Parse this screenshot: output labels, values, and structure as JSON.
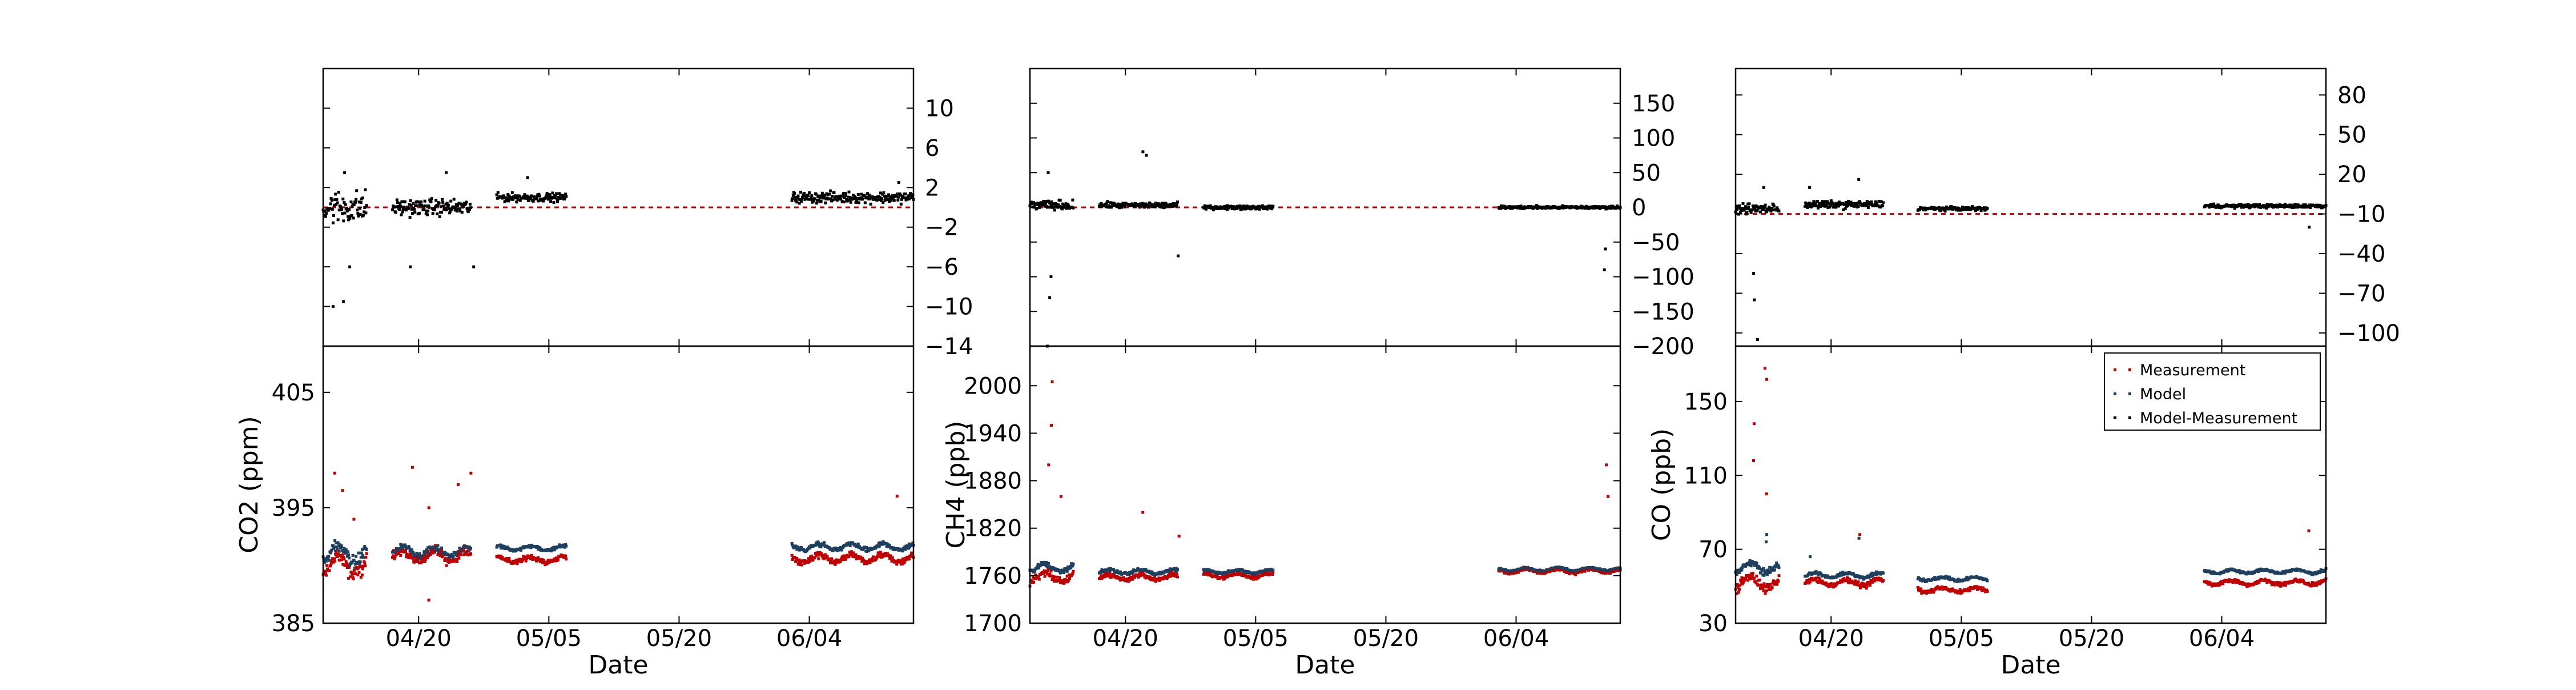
{
  "colors": {
    "measurement": "#c00000",
    "model": "#1f3f5f",
    "difference": "#000000",
    "zero_line": "#c00000"
  },
  "legend": {
    "placement": "top-right",
    "entries": [
      "Measurement",
      "Model",
      "Model-Measurement"
    ]
  },
  "chart_data": [
    {
      "type": "scatter",
      "panel": "CO2",
      "xlabel": "Date",
      "x_range": [
        "04-09",
        "06-16"
      ],
      "x_ticks": [
        "04/20",
        "05/05",
        "05/20",
        "06/04"
      ],
      "bottom": {
        "ylabel": "CO2 (ppm)",
        "ylim": [
          385,
          409
        ],
        "yticks": [
          385,
          395,
          405
        ],
        "segments": [
          {
            "x": [
              "04-09",
              "04-14"
            ],
            "model": 391,
            "measurement": 390,
            "spread": 2.2
          },
          {
            "x": [
              "04-17",
              "04-26"
            ],
            "model": 391.2,
            "measurement": 390.8,
            "spread": 1.2
          },
          {
            "x": [
              "04-29",
              "05-07"
            ],
            "model": 391.5,
            "measurement": 390.5,
            "spread": 0.6
          },
          {
            "x": [
              "06-02",
              "06-16"
            ],
            "model": 391.6,
            "measurement": 390.6,
            "spread": 0.8
          }
        ],
        "measurement_spikes": [
          {
            "x": "04-10",
            "y": 398
          },
          {
            "x": "04-11",
            "y": 396.5
          },
          {
            "x": "04-12",
            "y": 394
          },
          {
            "x": "04-19",
            "y": 398.5
          },
          {
            "x": "04-21",
            "y": 395
          },
          {
            "x": "04-24",
            "y": 397
          },
          {
            "x": "04-26",
            "y": 398
          },
          {
            "x": "04-21",
            "y": 387
          },
          {
            "x": "06-14",
            "y": 396
          }
        ]
      },
      "top": {
        "ylim": [
          -14,
          14
        ],
        "yticks": [
          10,
          6,
          2,
          -2,
          -6,
          -10,
          -14
        ],
        "zero_line": 0,
        "segments": [
          {
            "x": [
              "04-09",
              "04-14"
            ],
            "level": 0,
            "spread": 2.5
          },
          {
            "x": [
              "04-17",
              "04-26"
            ],
            "level": 0,
            "spread": 1.2
          },
          {
            "x": [
              "04-29",
              "05-07"
            ],
            "level": 1,
            "spread": 0.6
          },
          {
            "x": [
              "06-02",
              "06-16"
            ],
            "level": 1,
            "spread": 0.8
          }
        ],
        "spikes": [
          {
            "x": "04-10",
            "y": -10
          },
          {
            "x": "04-11",
            "y": -9.5
          },
          {
            "x": "04-12",
            "y": -6
          },
          {
            "x": "04-11",
            "y": 3.5
          },
          {
            "x": "04-19",
            "y": -6
          },
          {
            "x": "04-23",
            "y": 3.5
          },
          {
            "x": "04-26",
            "y": -6
          },
          {
            "x": "05-02",
            "y": 3
          },
          {
            "x": "06-14",
            "y": 2.5
          }
        ]
      }
    },
    {
      "type": "scatter",
      "panel": "CH4",
      "xlabel": "Date",
      "x_range": [
        "04-09",
        "06-16"
      ],
      "x_ticks": [
        "04/20",
        "05/05",
        "05/20",
        "06/04"
      ],
      "bottom": {
        "ylabel": "CH4 (ppb)",
        "ylim": [
          1700,
          2050
        ],
        "yticks": [
          1700,
          1760,
          1820,
          1880,
          1940,
          2000
        ],
        "segments": [
          {
            "x": [
              "04-09",
              "04-14"
            ],
            "model": 1770,
            "measurement": 1758,
            "spread": 15
          },
          {
            "x": [
              "04-17",
              "04-26"
            ],
            "model": 1765,
            "measurement": 1758,
            "spread": 8
          },
          {
            "x": [
              "04-29",
              "05-07"
            ],
            "model": 1765,
            "measurement": 1760,
            "spread": 6
          },
          {
            "x": [
              "06-02",
              "06-16"
            ],
            "model": 1768,
            "measurement": 1766,
            "spread": 6
          }
        ],
        "measurement_spikes": [
          {
            "x": "04-11",
            "y": 2005
          },
          {
            "x": "04-11",
            "y": 1950
          },
          {
            "x": "04-11",
            "y": 1900
          },
          {
            "x": "04-12",
            "y": 1860
          },
          {
            "x": "04-22",
            "y": 1840
          },
          {
            "x": "04-26",
            "y": 1810
          },
          {
            "x": "06-14",
            "y": 1900
          },
          {
            "x": "06-14",
            "y": 1860
          }
        ]
      },
      "top": {
        "ylim": [
          -200,
          200
        ],
        "yticks": [
          150,
          100,
          50,
          0,
          -50,
          -100,
          -150,
          -200
        ],
        "zero_line": 0,
        "segments": [
          {
            "x": [
              "04-09",
              "04-14"
            ],
            "level": 3,
            "spread": 10
          },
          {
            "x": [
              "04-17",
              "04-26"
            ],
            "level": 3,
            "spread": 6
          },
          {
            "x": [
              "04-29",
              "05-07"
            ],
            "level": 0,
            "spread": 4
          },
          {
            "x": [
              "06-02",
              "06-16"
            ],
            "level": 0,
            "spread": 3
          }
        ],
        "spikes": [
          {
            "x": "04-11",
            "y": -100
          },
          {
            "x": "04-11",
            "y": -130
          },
          {
            "x": "04-11",
            "y": -200
          },
          {
            "x": "04-11",
            "y": 50
          },
          {
            "x": "04-22",
            "y": 80
          },
          {
            "x": "04-22",
            "y": 75
          },
          {
            "x": "04-26",
            "y": -70
          },
          {
            "x": "06-14",
            "y": -90
          },
          {
            "x": "06-14",
            "y": -60
          }
        ]
      }
    },
    {
      "type": "scatter",
      "panel": "CO",
      "xlabel": "Date",
      "x_range": [
        "04-09",
        "06-16"
      ],
      "x_ticks": [
        "04/20",
        "05/05",
        "05/20",
        "06/04"
      ],
      "bottom": {
        "ylabel": "CO (ppb)",
        "ylim": [
          30,
          180
        ],
        "yticks": [
          30,
          70,
          110,
          150
        ],
        "segments": [
          {
            "x": [
              "04-09",
              "04-14"
            ],
            "model": 60,
            "measurement": 52,
            "spread": 8
          },
          {
            "x": [
              "04-17",
              "04-26"
            ],
            "model": 56,
            "measurement": 52,
            "spread": 4
          },
          {
            "x": [
              "04-30",
              "05-08"
            ],
            "model": 54,
            "measurement": 48,
            "spread": 3
          },
          {
            "x": [
              "06-02",
              "06-16"
            ],
            "model": 58,
            "measurement": 52,
            "spread": 3
          }
        ],
        "measurement_spikes": [
          {
            "x": "04-12",
            "y": 168
          },
          {
            "x": "04-12",
            "y": 162
          },
          {
            "x": "04-11",
            "y": 138
          },
          {
            "x": "04-11",
            "y": 118
          },
          {
            "x": "04-12",
            "y": 100
          },
          {
            "x": "04-23",
            "y": 78
          },
          {
            "x": "06-14",
            "y": 80
          }
        ],
        "model_spikes": [
          {
            "x": "04-12",
            "y": 78
          },
          {
            "x": "04-12",
            "y": 74
          },
          {
            "x": "04-17",
            "y": 66
          },
          {
            "x": "04-23",
            "y": 76
          }
        ]
      },
      "top": {
        "ylim": [
          -110,
          100
        ],
        "yticks": [
          80,
          50,
          20,
          -10,
          -40,
          -70,
          -100
        ],
        "zero_line": -10,
        "segments": [
          {
            "x": [
              "04-09",
              "04-14"
            ],
            "level": -6,
            "spread": 5
          },
          {
            "x": [
              "04-17",
              "04-26"
            ],
            "level": -3,
            "spread": 4
          },
          {
            "x": [
              "04-30",
              "05-08"
            ],
            "level": -6,
            "spread": 2
          },
          {
            "x": [
              "06-02",
              "06-16"
            ],
            "level": -4,
            "spread": 2
          }
        ],
        "spikes": [
          {
            "x": "04-11",
            "y": -55
          },
          {
            "x": "04-11",
            "y": -75
          },
          {
            "x": "04-11",
            "y": -105
          },
          {
            "x": "04-12",
            "y": 10
          },
          {
            "x": "04-17",
            "y": 10
          },
          {
            "x": "04-23",
            "y": 16
          },
          {
            "x": "06-14",
            "y": -20
          }
        ]
      }
    }
  ]
}
